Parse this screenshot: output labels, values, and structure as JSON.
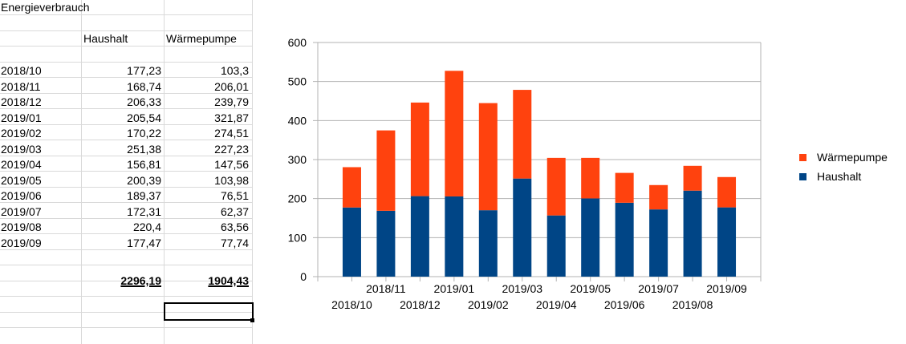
{
  "sheet": {
    "title": "Energieverbrauch",
    "col_headers": [
      "Haushalt",
      "Wärmepumpe"
    ],
    "rows": [
      {
        "month": "2018/10",
        "haushalt": "177,23",
        "waermepumpe": "103,3"
      },
      {
        "month": "2018/11",
        "haushalt": "168,74",
        "waermepumpe": "206,01"
      },
      {
        "month": "2018/12",
        "haushalt": "206,33",
        "waermepumpe": "239,79"
      },
      {
        "month": "2019/01",
        "haushalt": "205,54",
        "waermepumpe": "321,87"
      },
      {
        "month": "2019/02",
        "haushalt": "170,22",
        "waermepumpe": "274,51"
      },
      {
        "month": "2019/03",
        "haushalt": "251,38",
        "waermepumpe": "227,23"
      },
      {
        "month": "2019/04",
        "haushalt": "156,81",
        "waermepumpe": "147,56"
      },
      {
        "month": "2019/05",
        "haushalt": "200,39",
        "waermepumpe": "103,98"
      },
      {
        "month": "2019/06",
        "haushalt": "189,37",
        "waermepumpe": "76,51"
      },
      {
        "month": "2019/07",
        "haushalt": "172,31",
        "waermepumpe": "62,37"
      },
      {
        "month": "2019/08",
        "haushalt": "220,4",
        "waermepumpe": "63,56"
      },
      {
        "month": "2019/09",
        "haushalt": "177,47",
        "waermepumpe": "77,74"
      }
    ],
    "totals": {
      "haushalt": "2296,19",
      "waermepumpe": "1904,43"
    }
  },
  "chart_data": {
    "type": "bar",
    "stacked": true,
    "categories": [
      "2018/10",
      "2018/11",
      "2018/12",
      "2019/01",
      "2019/02",
      "2019/03",
      "2019/04",
      "2019/05",
      "2019/06",
      "2019/07",
      "2019/08",
      "2019/09"
    ],
    "series": [
      {
        "name": "Haushalt",
        "color": "#004586",
        "values": [
          177.23,
          168.74,
          206.33,
          205.54,
          170.22,
          251.38,
          156.81,
          200.39,
          189.37,
          172.31,
          220.4,
          177.47
        ]
      },
      {
        "name": "Wärmepumpe",
        "color": "#ff420e",
        "values": [
          103.3,
          206.01,
          239.79,
          321.87,
          274.51,
          227.23,
          147.56,
          103.98,
          76.51,
          62.37,
          63.56,
          77.74
        ]
      }
    ],
    "ylim": [
      0,
      600
    ],
    "yticks": [
      "0",
      "100",
      "200",
      "300",
      "400",
      "500",
      "600"
    ],
    "grid": true,
    "legend": "right"
  }
}
